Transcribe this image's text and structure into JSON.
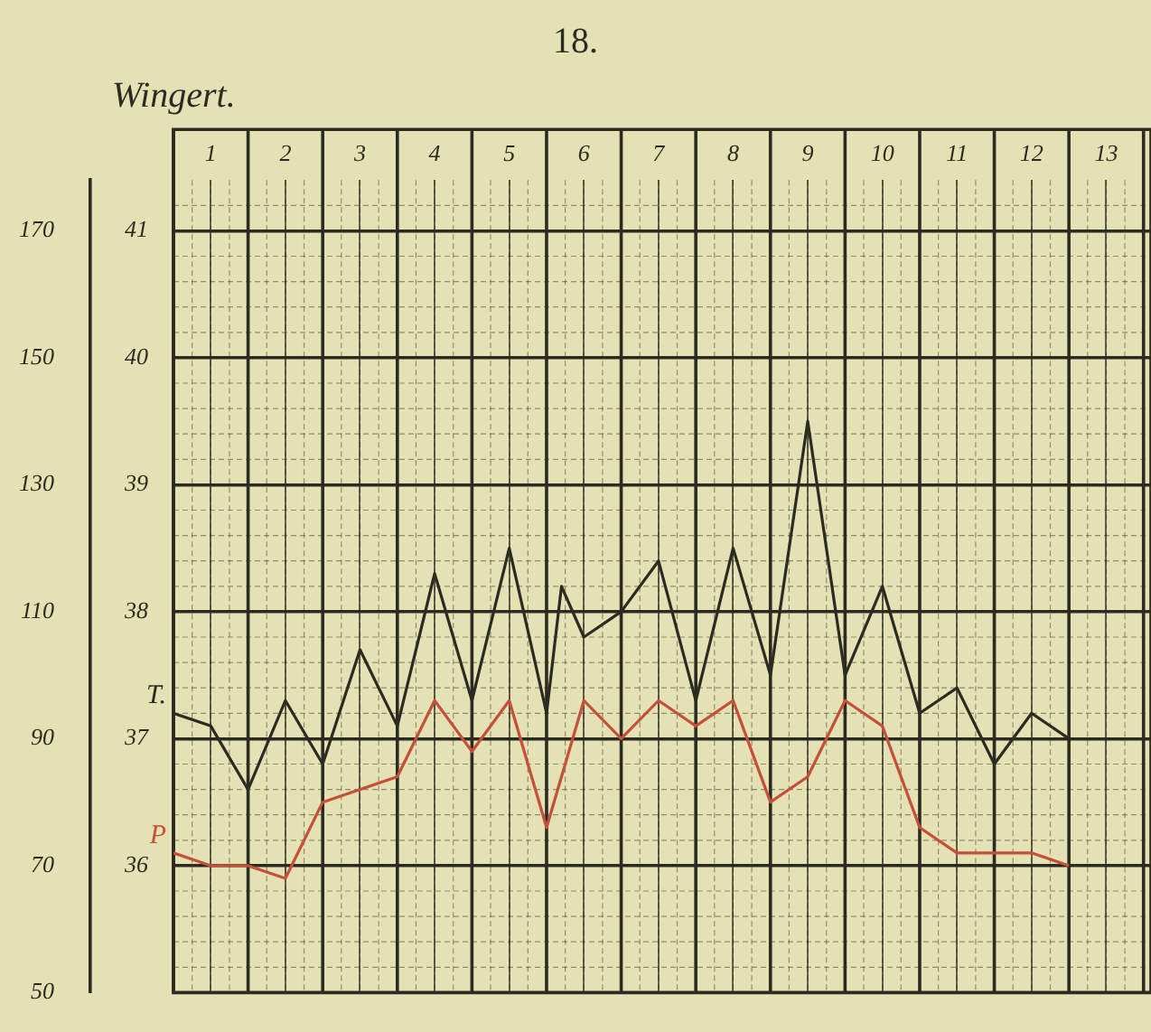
{
  "chart_data": {
    "type": "line",
    "title": "Wingert.",
    "annotations": [
      "18."
    ],
    "xlim": [
      0.5,
      13.6
    ],
    "xticks": [
      1,
      2,
      3,
      4,
      5,
      6,
      7,
      8,
      9,
      10,
      11,
      12,
      13
    ],
    "ylim": [
      35,
      41.4
    ],
    "yticks": [
      36,
      37,
      38,
      39,
      40,
      41
    ],
    "y2lim": [
      50,
      178
    ],
    "y2ticks": [
      50,
      70,
      90,
      110,
      130,
      150,
      170
    ],
    "grid": true,
    "legend": false,
    "marker": "none",
    "line_style": "solid",
    "series": [
      {
        "name": "T.",
        "color": "#2b2b22",
        "x": [
          0.5,
          1,
          1.5,
          2,
          2.5,
          3,
          3.5,
          4,
          4.5,
          5,
          5.5,
          5.7,
          6,
          6.5,
          7,
          7.5,
          8,
          8.5,
          9,
          9.5,
          10,
          10.5,
          11,
          11.5,
          12,
          12.5
        ],
        "values": [
          37.2,
          37.1,
          36.6,
          37.3,
          36.8,
          37.7,
          37.1,
          38.3,
          37.3,
          38.5,
          37.2,
          38.2,
          37.8,
          38.0,
          38.4,
          37.3,
          38.5,
          37.5,
          39.5,
          37.5,
          38.2,
          37.2,
          37.4,
          36.8,
          37.2,
          37.0
        ]
      },
      {
        "name": "P",
        "color": "#c4503a",
        "axis": "y2",
        "x": [
          0.5,
          1,
          1.5,
          2,
          2.5,
          3.5,
          4,
          4.5,
          5,
          5.5,
          6,
          6.5,
          7,
          7.5,
          8,
          8.5,
          9,
          9.5,
          10,
          10.5,
          11,
          11.5,
          12,
          12.5
        ],
        "values": [
          72,
          70,
          70,
          68,
          80,
          84,
          96,
          88,
          96,
          76,
          96,
          90,
          96,
          92,
          96,
          80,
          84,
          96,
          92,
          76,
          72,
          72,
          72,
          70
        ]
      }
    ]
  }
}
